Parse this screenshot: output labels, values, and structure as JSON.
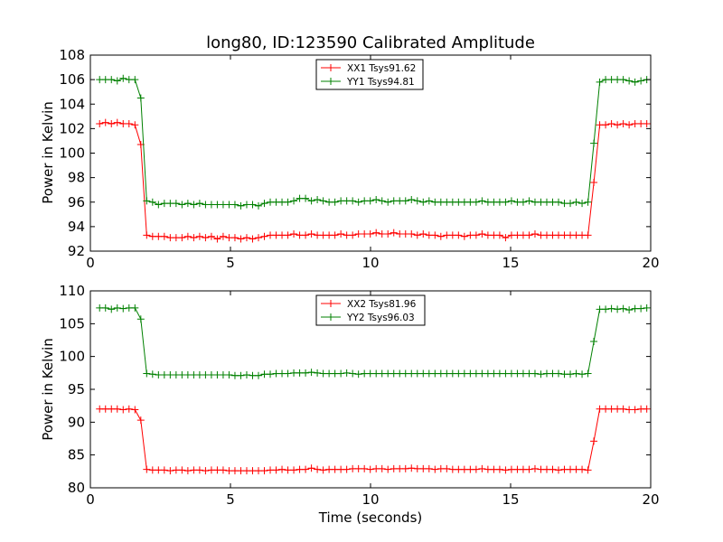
{
  "chart_data": [
    {
      "type": "line",
      "title": "long80, ID:123590 Calibrated Amplitude",
      "xlabel": "",
      "ylabel": "Power in Kelvin",
      "xlim": [
        0,
        20
      ],
      "ylim": [
        92,
        108
      ],
      "xticks": [
        0,
        5,
        10,
        15,
        20
      ],
      "yticks": [
        92,
        94,
        96,
        98,
        100,
        102,
        104,
        106,
        108
      ],
      "legend_position": "top-center",
      "series": [
        {
          "name": "XX1 Tsys91.62",
          "color": "#ff0000",
          "marker": "plus",
          "x": [
            0.33,
            0.54,
            0.75,
            0.96,
            1.17,
            1.38,
            1.59,
            1.8,
            2.01,
            2.22,
            2.43,
            2.64,
            2.85,
            3.06,
            3.27,
            3.48,
            3.69,
            3.9,
            4.11,
            4.32,
            4.53,
            4.74,
            4.95,
            5.16,
            5.37,
            5.58,
            5.79,
            6.0,
            6.21,
            6.42,
            6.63,
            6.84,
            7.05,
            7.26,
            7.47,
            7.68,
            7.89,
            8.1,
            8.31,
            8.52,
            8.73,
            8.94,
            9.15,
            9.36,
            9.57,
            9.78,
            9.99,
            10.2,
            10.41,
            10.62,
            10.83,
            11.04,
            11.25,
            11.46,
            11.67,
            11.88,
            12.09,
            12.3,
            12.51,
            12.72,
            12.93,
            13.14,
            13.35,
            13.56,
            13.77,
            13.98,
            14.19,
            14.4,
            14.61,
            14.82,
            15.03,
            15.24,
            15.45,
            15.66,
            15.87,
            16.08,
            16.29,
            16.5,
            16.71,
            16.92,
            17.13,
            17.34,
            17.55,
            17.76,
            17.97,
            18.18,
            18.39,
            18.6,
            18.81,
            19.02,
            19.23,
            19.44,
            19.65,
            19.86
          ],
          "y": [
            102.4,
            102.5,
            102.4,
            102.5,
            102.4,
            102.4,
            102.3,
            100.7,
            93.3,
            93.2,
            93.2,
            93.2,
            93.1,
            93.1,
            93.1,
            93.2,
            93.1,
            93.2,
            93.1,
            93.2,
            93.0,
            93.2,
            93.1,
            93.1,
            93.0,
            93.1,
            93.0,
            93.1,
            93.2,
            93.3,
            93.3,
            93.3,
            93.3,
            93.4,
            93.3,
            93.3,
            93.4,
            93.3,
            93.3,
            93.3,
            93.3,
            93.4,
            93.3,
            93.3,
            93.4,
            93.4,
            93.4,
            93.5,
            93.4,
            93.4,
            93.5,
            93.4,
            93.4,
            93.4,
            93.3,
            93.4,
            93.3,
            93.3,
            93.2,
            93.3,
            93.3,
            93.3,
            93.2,
            93.3,
            93.3,
            93.4,
            93.3,
            93.3,
            93.3,
            93.1,
            93.3,
            93.3,
            93.3,
            93.3,
            93.4,
            93.3,
            93.3,
            93.3,
            93.3,
            93.3,
            93.3,
            93.3,
            93.3,
            93.3,
            97.6,
            102.3,
            102.3,
            102.4,
            102.3,
            102.4,
            102.3,
            102.4,
            102.4,
            102.4
          ]
        },
        {
          "name": "YY1 Tsys94.81",
          "color": "#008000",
          "marker": "plus",
          "x": [
            0.33,
            0.54,
            0.75,
            0.96,
            1.17,
            1.38,
            1.59,
            1.8,
            2.01,
            2.22,
            2.43,
            2.64,
            2.85,
            3.06,
            3.27,
            3.48,
            3.69,
            3.9,
            4.11,
            4.32,
            4.53,
            4.74,
            4.95,
            5.16,
            5.37,
            5.58,
            5.79,
            6.0,
            6.21,
            6.42,
            6.63,
            6.84,
            7.05,
            7.26,
            7.47,
            7.68,
            7.89,
            8.1,
            8.31,
            8.52,
            8.73,
            8.94,
            9.15,
            9.36,
            9.57,
            9.78,
            9.99,
            10.2,
            10.41,
            10.62,
            10.83,
            11.04,
            11.25,
            11.46,
            11.67,
            11.88,
            12.09,
            12.3,
            12.51,
            12.72,
            12.93,
            13.14,
            13.35,
            13.56,
            13.77,
            13.98,
            14.19,
            14.4,
            14.61,
            14.82,
            15.03,
            15.24,
            15.45,
            15.66,
            15.87,
            16.08,
            16.29,
            16.5,
            16.71,
            16.92,
            17.13,
            17.34,
            17.55,
            17.76,
            17.97,
            18.18,
            18.39,
            18.6,
            18.81,
            19.02,
            19.23,
            19.44,
            19.65,
            19.86
          ],
          "y": [
            106.0,
            106.0,
            106.0,
            105.9,
            106.1,
            106.0,
            106.0,
            104.5,
            96.1,
            96.0,
            95.8,
            95.9,
            95.9,
            95.9,
            95.8,
            95.9,
            95.8,
            95.9,
            95.8,
            95.8,
            95.8,
            95.8,
            95.8,
            95.8,
            95.7,
            95.8,
            95.8,
            95.7,
            95.9,
            96.0,
            96.0,
            96.0,
            96.0,
            96.1,
            96.3,
            96.3,
            96.1,
            96.2,
            96.1,
            96.0,
            96.0,
            96.1,
            96.1,
            96.1,
            96.0,
            96.1,
            96.1,
            96.2,
            96.1,
            96.0,
            96.1,
            96.1,
            96.1,
            96.2,
            96.1,
            96.0,
            96.1,
            96.0,
            96.0,
            96.0,
            96.0,
            96.0,
            96.0,
            96.0,
            96.0,
            96.1,
            96.0,
            96.0,
            96.0,
            96.0,
            96.1,
            96.0,
            96.0,
            96.1,
            96.0,
            96.0,
            96.0,
            96.0,
            96.0,
            95.9,
            95.9,
            96.0,
            95.9,
            96.0,
            100.8,
            105.8,
            106.0,
            106.0,
            106.0,
            106.0,
            105.9,
            105.8,
            105.9,
            106.0
          ]
        }
      ]
    },
    {
      "type": "line",
      "title": "",
      "xlabel": "Time (seconds)",
      "ylabel": "Power in Kelvin",
      "xlim": [
        0,
        20
      ],
      "ylim": [
        80,
        110
      ],
      "xticks": [
        0,
        5,
        10,
        15,
        20
      ],
      "yticks": [
        80,
        85,
        90,
        95,
        100,
        105,
        110
      ],
      "legend_position": "top-center",
      "series": [
        {
          "name": "XX2 Tsys81.96",
          "color": "#ff0000",
          "marker": "plus",
          "x": [
            0.33,
            0.54,
            0.75,
            0.96,
            1.17,
            1.38,
            1.59,
            1.8,
            2.01,
            2.22,
            2.43,
            2.64,
            2.85,
            3.06,
            3.27,
            3.48,
            3.69,
            3.9,
            4.11,
            4.32,
            4.53,
            4.74,
            4.95,
            5.16,
            5.37,
            5.58,
            5.79,
            6.0,
            6.21,
            6.42,
            6.63,
            6.84,
            7.05,
            7.26,
            7.47,
            7.68,
            7.89,
            8.1,
            8.31,
            8.52,
            8.73,
            8.94,
            9.15,
            9.36,
            9.57,
            9.78,
            9.99,
            10.2,
            10.41,
            10.62,
            10.83,
            11.04,
            11.25,
            11.46,
            11.67,
            11.88,
            12.09,
            12.3,
            12.51,
            12.72,
            12.93,
            13.14,
            13.35,
            13.56,
            13.77,
            13.98,
            14.19,
            14.4,
            14.61,
            14.82,
            15.03,
            15.24,
            15.45,
            15.66,
            15.87,
            16.08,
            16.29,
            16.5,
            16.71,
            16.92,
            17.13,
            17.34,
            17.55,
            17.76,
            17.97,
            18.18,
            18.39,
            18.6,
            18.81,
            19.02,
            19.23,
            19.44,
            19.65,
            19.86
          ],
          "y": [
            92.0,
            92.0,
            92.0,
            92.0,
            91.9,
            92.0,
            91.9,
            90.3,
            82.8,
            82.7,
            82.7,
            82.7,
            82.6,
            82.7,
            82.7,
            82.6,
            82.7,
            82.7,
            82.6,
            82.7,
            82.7,
            82.7,
            82.6,
            82.6,
            82.6,
            82.6,
            82.6,
            82.6,
            82.6,
            82.7,
            82.7,
            82.8,
            82.7,
            82.7,
            82.8,
            82.8,
            83.0,
            82.8,
            82.7,
            82.8,
            82.8,
            82.8,
            82.8,
            82.9,
            82.9,
            82.9,
            82.8,
            82.9,
            82.9,
            82.8,
            82.9,
            82.9,
            82.9,
            83.0,
            82.9,
            82.9,
            82.9,
            82.8,
            82.9,
            82.9,
            82.8,
            82.8,
            82.8,
            82.8,
            82.8,
            82.9,
            82.8,
            82.8,
            82.8,
            82.7,
            82.8,
            82.8,
            82.8,
            82.8,
            82.9,
            82.8,
            82.8,
            82.8,
            82.7,
            82.8,
            82.8,
            82.8,
            82.8,
            82.7,
            87.1,
            92.0,
            92.0,
            92.0,
            92.0,
            92.0,
            91.9,
            91.9,
            92.0,
            92.0
          ]
        },
        {
          "name": "YY2 Tsys96.03",
          "color": "#008000",
          "marker": "plus",
          "x": [
            0.33,
            0.54,
            0.75,
            0.96,
            1.17,
            1.38,
            1.59,
            1.8,
            2.01,
            2.22,
            2.43,
            2.64,
            2.85,
            3.06,
            3.27,
            3.48,
            3.69,
            3.9,
            4.11,
            4.32,
            4.53,
            4.74,
            4.95,
            5.16,
            5.37,
            5.58,
            5.79,
            6.0,
            6.21,
            6.42,
            6.63,
            6.84,
            7.05,
            7.26,
            7.47,
            7.68,
            7.89,
            8.1,
            8.31,
            8.52,
            8.73,
            8.94,
            9.15,
            9.36,
            9.57,
            9.78,
            9.99,
            10.2,
            10.41,
            10.62,
            10.83,
            11.04,
            11.25,
            11.46,
            11.67,
            11.88,
            12.09,
            12.3,
            12.51,
            12.72,
            12.93,
            13.14,
            13.35,
            13.56,
            13.77,
            13.98,
            14.19,
            14.4,
            14.61,
            14.82,
            15.03,
            15.24,
            15.45,
            15.66,
            15.87,
            16.08,
            16.29,
            16.5,
            16.71,
            16.92,
            17.13,
            17.34,
            17.55,
            17.76,
            17.97,
            18.18,
            18.39,
            18.6,
            18.81,
            19.02,
            19.23,
            19.44,
            19.65,
            19.86
          ],
          "y": [
            107.4,
            107.4,
            107.2,
            107.4,
            107.3,
            107.4,
            107.4,
            105.7,
            97.4,
            97.3,
            97.2,
            97.2,
            97.2,
            97.2,
            97.2,
            97.2,
            97.2,
            97.2,
            97.2,
            97.2,
            97.2,
            97.2,
            97.2,
            97.1,
            97.1,
            97.2,
            97.1,
            97.1,
            97.3,
            97.3,
            97.4,
            97.4,
            97.4,
            97.5,
            97.5,
            97.5,
            97.6,
            97.5,
            97.4,
            97.4,
            97.4,
            97.4,
            97.5,
            97.4,
            97.3,
            97.4,
            97.4,
            97.4,
            97.4,
            97.4,
            97.4,
            97.4,
            97.4,
            97.4,
            97.4,
            97.4,
            97.4,
            97.4,
            97.4,
            97.4,
            97.4,
            97.4,
            97.4,
            97.4,
            97.4,
            97.4,
            97.4,
            97.4,
            97.4,
            97.4,
            97.4,
            97.4,
            97.4,
            97.4,
            97.4,
            97.3,
            97.4,
            97.4,
            97.4,
            97.3,
            97.3,
            97.4,
            97.3,
            97.4,
            102.3,
            107.2,
            107.2,
            107.3,
            107.2,
            107.3,
            107.1,
            107.3,
            107.3,
            107.4
          ]
        }
      ]
    }
  ]
}
